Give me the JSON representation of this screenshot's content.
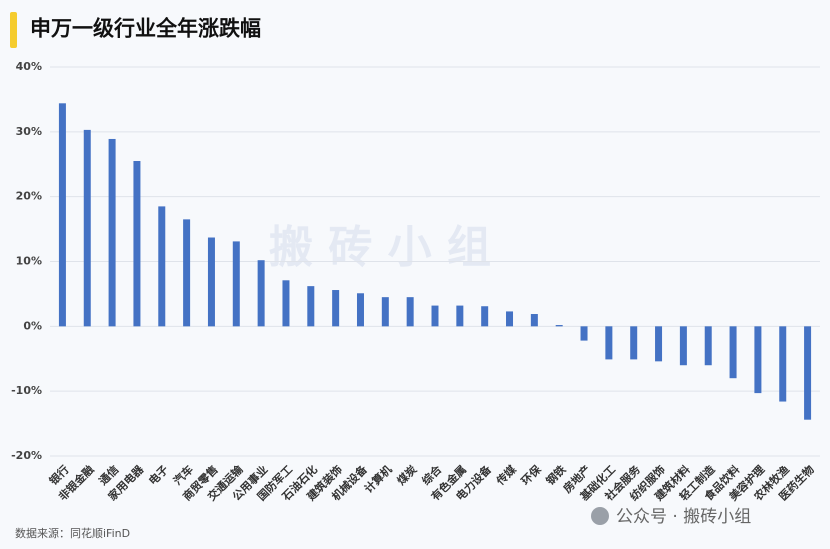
{
  "chart_data": {
    "type": "bar",
    "title": "申万一级行业全年涨跌幅",
    "categories": [
      "银行",
      "非银金融",
      "通信",
      "家用电器",
      "电子",
      "汽车",
      "商贸零售",
      "交通运输",
      "公用事业",
      "国防军工",
      "石油石化",
      "建筑装饰",
      "机械设备",
      "计算机",
      "煤炭",
      "综合",
      "有色金属",
      "电力设备",
      "传媒",
      "环保",
      "钢铁",
      "房地产",
      "基础化工",
      "社会服务",
      "纺织服饰",
      "建筑材料",
      "轻工制造",
      "食品饮料",
      "美容护理",
      "农林牧渔",
      "医药生物"
    ],
    "values": [
      34.4,
      30.3,
      28.9,
      25.5,
      18.5,
      16.5,
      13.7,
      13.1,
      10.2,
      7.1,
      6.2,
      5.6,
      5.1,
      4.5,
      4.5,
      3.2,
      3.2,
      3.1,
      2.3,
      1.9,
      0.2,
      -2.2,
      -5.1,
      -5.1,
      -5.4,
      -6.0,
      -6.0,
      -8.0,
      -10.3,
      -11.6,
      -14.4
    ],
    "color": "#4472c4",
    "ylim": [
      -20,
      40
    ],
    "yticks": [
      {
        "value": -20,
        "label": "-20%"
      },
      {
        "value": -10,
        "label": "-10%"
      },
      {
        "value": 0,
        "label": "0%"
      },
      {
        "value": 10,
        "label": "10%"
      },
      {
        "value": 20,
        "label": "20%"
      },
      {
        "value": 30,
        "label": "30%"
      },
      {
        "value": 40,
        "label": "40%"
      }
    ],
    "grid": true,
    "source": "数据来源：同花顺iFinD",
    "watermark": "搬 砖 小 组",
    "brand": "公众号 · 搬砖小组"
  }
}
